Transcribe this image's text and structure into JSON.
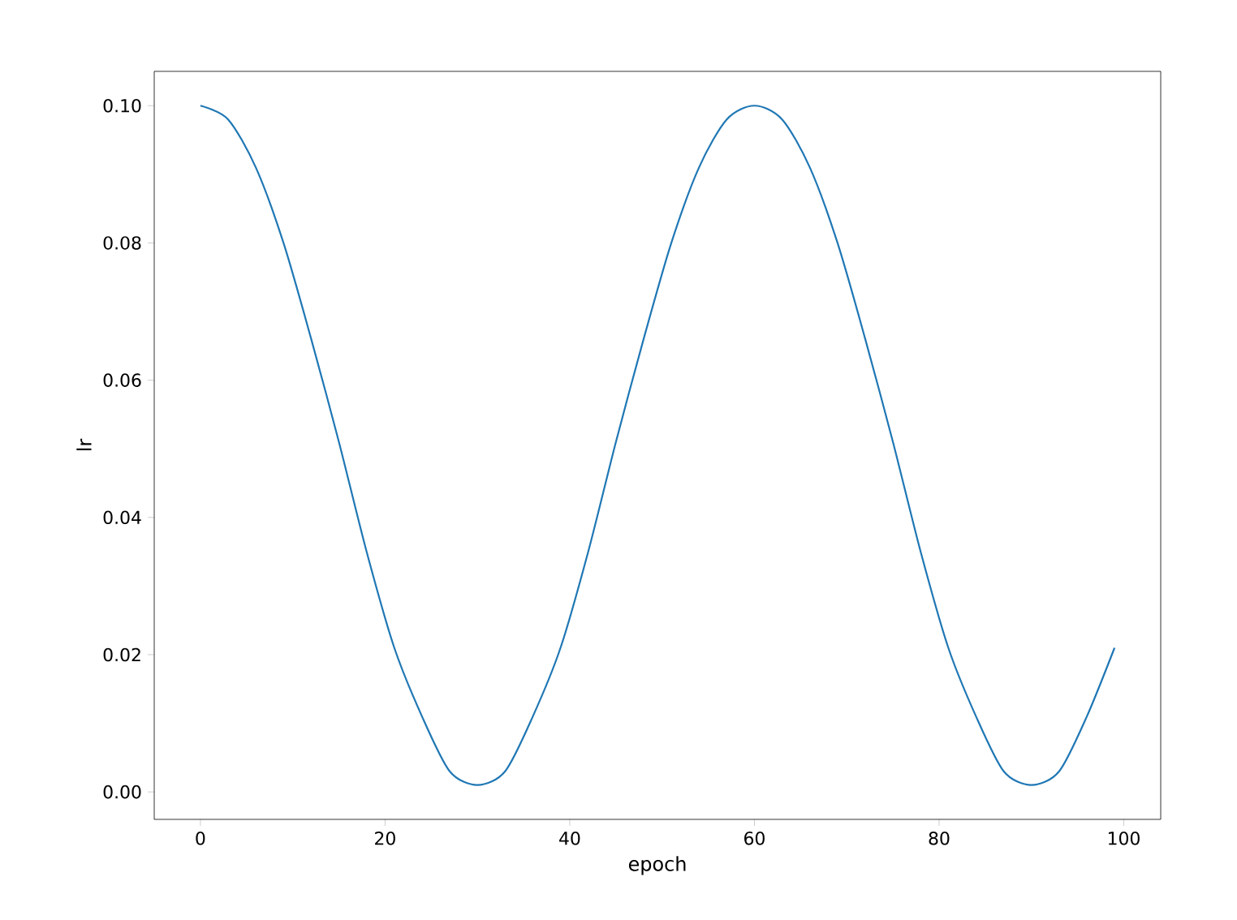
{
  "chart_data": {
    "type": "line",
    "xlabel": "epoch",
    "ylabel": "lr",
    "x": [
      0,
      3,
      6,
      9,
      12,
      15,
      18,
      21,
      24,
      27,
      30,
      33,
      36,
      39,
      42,
      45,
      48,
      51,
      54,
      57,
      60,
      63,
      66,
      69,
      72,
      75,
      78,
      81,
      84,
      87,
      90,
      93,
      96,
      99
    ],
    "series": [
      {
        "color": "#1f77b4",
        "values": [
          0.1,
          0.098,
          0.091,
          0.08,
          0.066,
          0.051,
          0.035,
          0.021,
          0.011,
          0.003,
          0.001,
          0.003,
          0.011,
          0.021,
          0.035,
          0.051,
          0.066,
          0.08,
          0.091,
          0.098,
          0.1,
          0.098,
          0.091,
          0.08,
          0.066,
          0.051,
          0.035,
          0.021,
          0.011,
          0.003,
          0.001,
          0.003,
          0.011,
          0.021
        ]
      }
    ],
    "xlim": [
      -5,
      104
    ],
    "ylim": [
      -0.004,
      0.105
    ],
    "xticks": [
      0,
      20,
      40,
      60,
      80,
      100
    ],
    "yticks": [
      {
        "value": 0,
        "label": "0.00"
      },
      {
        "value": 0.02,
        "label": "0.02"
      },
      {
        "value": 0.04,
        "label": "0.04"
      },
      {
        "value": 0.06,
        "label": "0.06"
      },
      {
        "value": 0.08,
        "label": "0.08"
      },
      {
        "value": 0.1,
        "label": "0.10"
      }
    ],
    "line_style": "solid",
    "marker": "none",
    "grid": false
  }
}
